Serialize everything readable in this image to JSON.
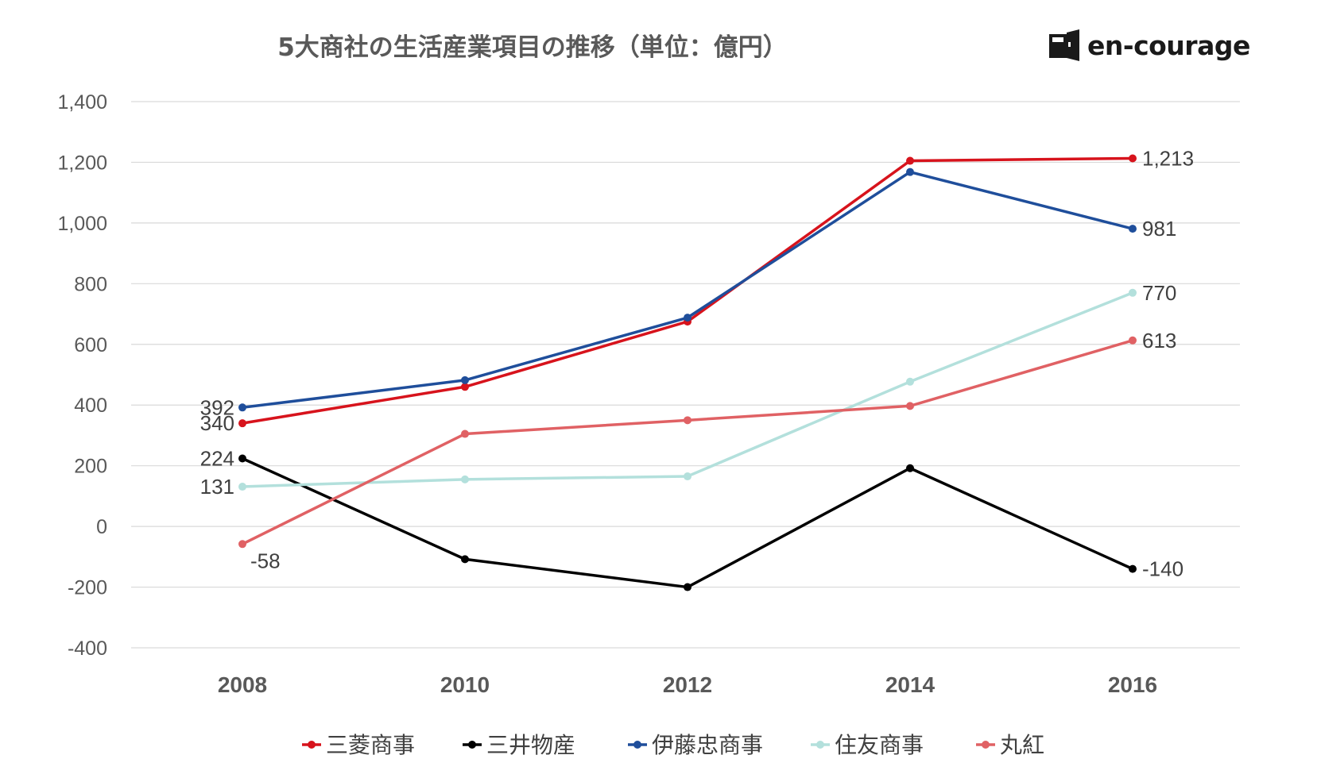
{
  "header": {
    "title": "5大商社の生活産業項目の推移（単位：億円）",
    "logo_text": "en-courage"
  },
  "chart_data": {
    "type": "line",
    "title": "5大商社の生活産業項目の推移（単位：億円）",
    "xlabel": "",
    "ylabel": "",
    "categories": [
      "2008",
      "2010",
      "2012",
      "2014",
      "2016"
    ],
    "ylim": [
      -400,
      1400
    ],
    "yticks": [
      1400,
      1200,
      1000,
      800,
      600,
      400,
      200,
      0,
      -200,
      -400
    ],
    "ytick_labels": [
      "1,400",
      "1,200",
      "1,000",
      "800",
      "600",
      "400",
      "200",
      "0",
      "-200",
      "-400"
    ],
    "grid": true,
    "legend_position": "bottom",
    "series": [
      {
        "name": "三菱商事",
        "color": "#d7131c",
        "values": [
          340,
          460,
          675,
          1205,
          1213
        ]
      },
      {
        "name": "三井物産",
        "color": "#000000",
        "values": [
          224,
          -108,
          -200,
          192,
          -140
        ]
      },
      {
        "name": "伊藤忠商事",
        "color": "#1f4e9b",
        "values": [
          392,
          482,
          688,
          1168,
          981
        ]
      },
      {
        "name": "住友商事",
        "color": "#b3e0dc",
        "values": [
          131,
          155,
          165,
          477,
          770
        ]
      },
      {
        "name": "丸紅",
        "color": "#e06164",
        "values": [
          -58,
          305,
          350,
          397,
          613
        ]
      }
    ],
    "data_labels": [
      {
        "series": 2,
        "index": 0,
        "text": "392",
        "side": "left"
      },
      {
        "series": 0,
        "index": 0,
        "text": "340",
        "side": "left"
      },
      {
        "series": 1,
        "index": 0,
        "text": "224",
        "side": "left"
      },
      {
        "series": 3,
        "index": 0,
        "text": "131",
        "side": "left"
      },
      {
        "series": 4,
        "index": 0,
        "text": "-58",
        "side": "right-below"
      },
      {
        "series": 0,
        "index": 4,
        "text": "1,213",
        "side": "right"
      },
      {
        "series": 2,
        "index": 4,
        "text": "981",
        "side": "right"
      },
      {
        "series": 3,
        "index": 4,
        "text": "770",
        "side": "right"
      },
      {
        "series": 4,
        "index": 4,
        "text": "613",
        "side": "right"
      },
      {
        "series": 1,
        "index": 4,
        "text": "-140",
        "side": "right"
      }
    ]
  }
}
